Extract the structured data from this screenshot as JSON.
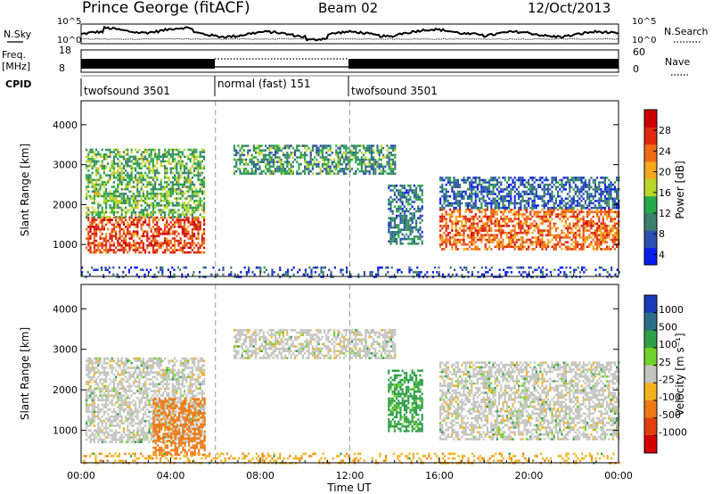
{
  "header": {
    "station": "Prince George (fitACF)",
    "beam": "Beam 02",
    "date": "12/Oct/2013"
  },
  "noise_panel": {
    "left_label": "N.Sky",
    "right_label": "N.Search",
    "ticks_left": [
      "10^5",
      "10^0"
    ],
    "ticks_right": [
      "10^5",
      "10^0"
    ]
  },
  "freq_panel": {
    "left_label_1": "Freq.",
    "left_label_2": "[MHz]",
    "ticks_left": [
      "18",
      "8"
    ],
    "right_label": "Nave",
    "ticks_right": [
      "60",
      "0"
    ]
  },
  "cpid_panel": {
    "label": "CPID",
    "segments": [
      {
        "label": "twofsound 3501",
        "start": 0,
        "end": 6
      },
      {
        "label": "normal (fast) 151",
        "start": 6,
        "end": 12
      },
      {
        "label": "twofsound 3501",
        "start": 12,
        "end": 24
      }
    ]
  },
  "chart_data": [
    {
      "type": "heatmap",
      "title": "",
      "xlabel": "",
      "ylabel": "Slant Range [km]",
      "x_range_hours": [
        0,
        24
      ],
      "ylim": [
        200,
        4600
      ],
      "y_ticks": [
        1000,
        2000,
        3000,
        4000
      ],
      "colorbar": {
        "label": "Power [dB]",
        "tick_values": [
          4,
          8,
          12,
          16,
          20,
          24,
          28
        ],
        "colors": [
          "#0a1ef0",
          "#2b4fb0",
          "#3b7f6d",
          "#27a84a",
          "#b9d62a",
          "#f2a81c",
          "#ee6a16",
          "#dd2a10",
          "#cc0000"
        ]
      },
      "regions": [
        {
          "t0": 0.2,
          "t1": 5.5,
          "r0": 800,
          "r1": 1700,
          "value": 26
        },
        {
          "t0": 0.2,
          "t1": 5.5,
          "r0": 1700,
          "r1": 3400,
          "value": 14
        },
        {
          "t0": 6.8,
          "t1": 14,
          "r0": 2800,
          "r1": 3500,
          "value": 12
        },
        {
          "t0": 13.7,
          "t1": 15.2,
          "r0": 1000,
          "r1": 2500,
          "value": 10
        },
        {
          "t0": 16,
          "t1": 24,
          "r0": 900,
          "r1": 1900,
          "value": 24
        },
        {
          "t0": 16,
          "t1": 24,
          "r0": 1900,
          "r1": 2700,
          "value": 8
        },
        {
          "t0": 0,
          "t1": 24,
          "r0": 200,
          "r1": 450,
          "value": 6
        }
      ]
    },
    {
      "type": "heatmap",
      "title": "",
      "xlabel": "Time UT",
      "ylabel": "Slant Range [km]",
      "x_range_hours": [
        0,
        24
      ],
      "x_ticks": [
        "00:00",
        "04:00",
        "08:00",
        "12:00",
        "16:00",
        "20:00",
        "00:00"
      ],
      "ylim": [
        200,
        4600
      ],
      "y_ticks": [
        1000,
        2000,
        3000,
        4000
      ],
      "colorbar": {
        "label": "Velocity [m s⁻¹]",
        "tick_labels": [
          "1000",
          "500",
          "100",
          "25",
          "-25",
          "-100",
          "-500",
          "-1000"
        ],
        "colors": [
          "#1a3db8",
          "#2c6e88",
          "#2f9f4a",
          "#6fd22a",
          "#c4c4c0",
          "#f2b21e",
          "#ee7a14",
          "#e23f10",
          "#d40000"
        ]
      },
      "regions": [
        {
          "t0": 0.2,
          "t1": 5.5,
          "r0": 700,
          "r1": 2800,
          "value": 0
        },
        {
          "t0": 3.2,
          "t1": 5.5,
          "r0": 400,
          "r1": 1800,
          "value": -300
        },
        {
          "t0": 6.8,
          "t1": 14,
          "r0": 2800,
          "r1": 3500,
          "value": 0
        },
        {
          "t0": 13.7,
          "t1": 15.2,
          "r0": 1000,
          "r1": 2500,
          "value": 120
        },
        {
          "t0": 16,
          "t1": 24,
          "r0": 800,
          "r1": 2700,
          "value": 0
        },
        {
          "t0": 0,
          "t1": 24,
          "r0": 200,
          "r1": 450,
          "value": -80
        }
      ]
    }
  ]
}
